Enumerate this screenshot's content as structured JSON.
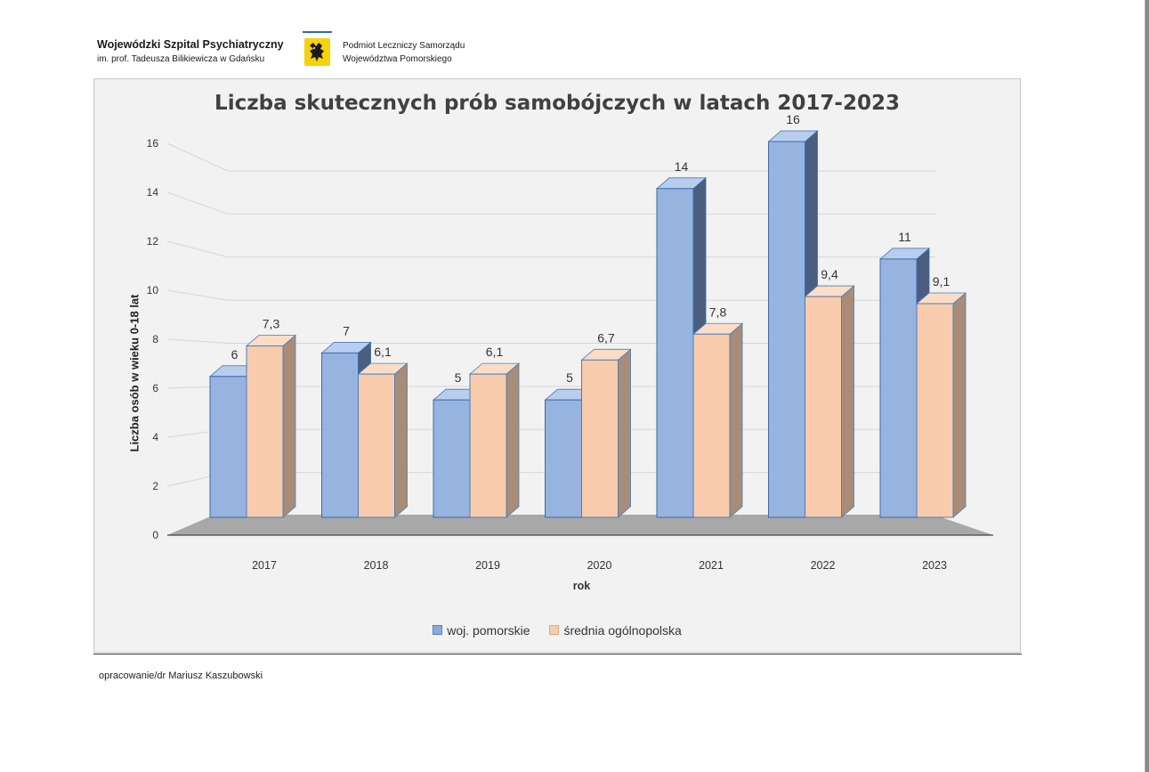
{
  "header": {
    "org_name": "Wojewódzki Szpital Psychiatryczny",
    "org_sub": "im. prof. Tadeusza Bilikiewicza w Gdańsku",
    "authority_line1": "Podmiot Leczniczy Samorządu",
    "authority_line2": "Województwa Pomorskiego"
  },
  "chart_data": {
    "type": "bar",
    "title": "Liczba skutecznych prób samobójczych w latach 2017-2023",
    "xlabel": "rok",
    "ylabel": "Liczba osób w wieku 0-18 lat",
    "ylim": [
      0,
      16
    ],
    "yticks": [
      "0",
      "2",
      "4",
      "6",
      "8",
      "10",
      "12",
      "14",
      "16"
    ],
    "categories": [
      "2017",
      "2018",
      "2019",
      "2020",
      "2021",
      "2022",
      "2023"
    ],
    "series": [
      {
        "name": "woj. pomorskie",
        "values": [
          6,
          7,
          5,
          5,
          14,
          16,
          11
        ],
        "labels": [
          "6",
          "7",
          "5",
          "5",
          "14",
          "16",
          "11"
        ],
        "color": "#8eaadb"
      },
      {
        "name": "średnia ogólnopolska",
        "values": [
          7.3,
          6.1,
          6.1,
          6.7,
          7.8,
          9.4,
          9.1
        ],
        "labels": [
          "7,3",
          "6,1",
          "6,1",
          "6,7",
          "7,8",
          "9,4",
          "9,1"
        ],
        "color": "#f8cbad"
      }
    ],
    "legend_position": "bottom",
    "grid": true
  },
  "footer": {
    "credit": "opracowanie/dr Mariusz Kaszubowski"
  }
}
